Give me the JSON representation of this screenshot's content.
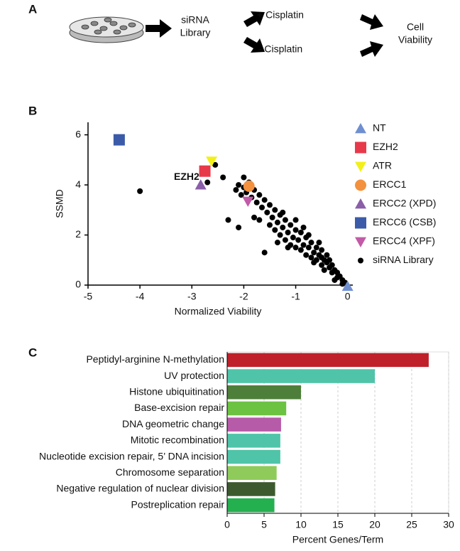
{
  "diagram": {
    "label": "A",
    "nodes": [
      {
        "lines": [
          "siRNA",
          "Library"
        ]
      },
      {
        "lines": [
          "+ Cisplatin"
        ]
      },
      {
        "lines": [
          "- Cisplatin"
        ]
      },
      {
        "lines": [
          "Cell",
          "Viability"
        ]
      }
    ]
  },
  "chart_data": [
    {
      "type": "scatter",
      "label": "B",
      "xlabel": "Normalized Viability",
      "ylabel": "SSMD",
      "xlim": [
        -5,
        0.1
      ],
      "ylim": [
        0,
        6.5
      ],
      "xticks": [
        -5,
        -4,
        -3,
        -2,
        -1,
        0
      ],
      "yticks": [
        0,
        2,
        4,
        6
      ],
      "legend": "outside right",
      "annotations": [
        {
          "text": "EZH2",
          "x": -3.1,
          "y": 4.3
        }
      ],
      "series": [
        {
          "name": "NT",
          "color": "#6f8fd0",
          "marker": "triangle",
          "x": [
            0
          ],
          "values": [
            -0.05
          ]
        },
        {
          "name": "EZH2",
          "color": "#e8394a",
          "marker": "square",
          "x": [
            -2.75
          ],
          "values": [
            4.55
          ]
        },
        {
          "name": "ATR",
          "color": "#f2ef1a",
          "marker": "triangle-down",
          "x": [
            -2.62
          ],
          "values": [
            4.95
          ]
        },
        {
          "name": "ERCC1",
          "color": "#f3913e",
          "marker": "circle",
          "x": [
            -1.9
          ],
          "values": [
            3.95
          ]
        },
        {
          "name": "ERCC2 (XPD)",
          "color": "#8a5ea8",
          "marker": "triangle",
          "x": [
            -2.83
          ],
          "values": [
            4.0
          ]
        },
        {
          "name": "ERCC6 (CSB)",
          "color": "#3b5ba9",
          "marker": "square",
          "x": [
            -4.4
          ],
          "values": [
            5.8
          ]
        },
        {
          "name": "ERCC4 (XPF)",
          "color": "#c25aa8",
          "marker": "triangle-down",
          "x": [
            -1.92
          ],
          "values": [
            3.35
          ]
        },
        {
          "name": "siRNA  Library",
          "color": "#000000",
          "marker": "dot",
          "x": [
            -0.05,
            -0.1,
            -0.15,
            -0.2,
            -0.2,
            -0.25,
            -0.3,
            -0.3,
            -0.35,
            -0.35,
            -0.4,
            -0.4,
            -0.45,
            -0.5,
            -0.5,
            -0.5,
            -0.55,
            -0.6,
            -0.6,
            -0.65,
            -0.7,
            -0.7,
            -0.75,
            -0.8,
            -0.8,
            -0.85,
            -0.9,
            -0.9,
            -0.95,
            -1.0,
            -1.0,
            -1.05,
            -1.1,
            -1.1,
            -1.15,
            -1.2,
            -1.2,
            -1.25,
            -1.3,
            -1.3,
            -1.35,
            -1.4,
            -1.4,
            -1.45,
            -1.5,
            -1.5,
            -1.55,
            -1.6,
            -1.6,
            -1.65,
            -1.7,
            -1.7,
            -1.75,
            -1.8,
            -1.8,
            -1.85,
            -1.9,
            -1.95,
            -2.0,
            -2.0,
            -2.05,
            -2.1,
            -2.1,
            -2.15,
            -2.3,
            -2.4,
            -2.55,
            -2.7,
            -4.0,
            -0.1,
            -0.25,
            -0.45,
            -0.65,
            -0.85,
            -1.15,
            -1.35,
            -0.55,
            -0.75,
            -1.0,
            -1.25
          ],
          "values": [
            0.1,
            0.2,
            0.35,
            0.3,
            0.5,
            0.6,
            0.5,
            0.8,
            0.7,
            1.0,
            0.9,
            1.2,
            1.0,
            0.8,
            1.1,
            1.4,
            1.2,
            1.0,
            1.5,
            1.3,
            1.1,
            1.7,
            1.5,
            1.2,
            1.9,
            1.6,
            1.4,
            2.1,
            1.8,
            1.5,
            2.2,
            1.9,
            1.6,
            2.4,
            2.1,
            1.8,
            2.6,
            2.3,
            2.0,
            2.8,
            2.5,
            2.2,
            3.0,
            2.7,
            2.4,
            3.2,
            2.9,
            1.3,
            3.4,
            3.1,
            2.6,
            3.6,
            3.3,
            2.7,
            3.8,
            3.5,
            4.1,
            3.7,
            4.3,
            3.9,
            3.6,
            2.3,
            4.0,
            3.8,
            2.6,
            4.3,
            4.8,
            4.1,
            3.75,
            0.05,
            0.2,
            0.6,
            0.9,
            2.3,
            1.5,
            1.7,
            1.7,
            2.0,
            2.6,
            2.9
          ]
        }
      ]
    },
    {
      "type": "hbar",
      "label": "C",
      "xlabel": "Percent Genes/Term",
      "xlim": [
        0,
        30
      ],
      "xticks": [
        0,
        5,
        10,
        15,
        20,
        25,
        30
      ],
      "grid": true,
      "categories": [
        "Peptidyl-arginine N-methylation",
        "UV protection",
        "Histone ubiquitination",
        "Base-excision repair",
        "DNA geometric change",
        "Mitotic recombination",
        "Nucleotide excision repair, 5’ DNA incision",
        "Chromosome separation",
        "Negative regulation of nuclear division",
        "Postreplication repair"
      ],
      "values": [
        27.3,
        20,
        10,
        8,
        7.3,
        7.2,
        7.2,
        6.7,
        6.5,
        6.4
      ],
      "colors": [
        "#c0202a",
        "#4fc4a8",
        "#4e7f3a",
        "#6cc241",
        "#b65ba8",
        "#4fc4a8",
        "#4fc4a8",
        "#8fcb5a",
        "#3c5a2e",
        "#25b050"
      ]
    }
  ]
}
